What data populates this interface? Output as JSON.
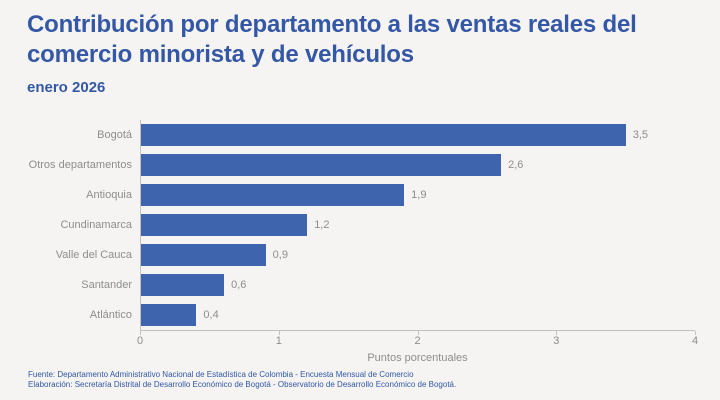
{
  "header": {
    "title": "Contribución por departamento a las ventas reales del comercio minorista y de vehículos",
    "subtitle": "enero 2026"
  },
  "chart_data": {
    "type": "bar",
    "orientation": "horizontal",
    "title": "Contribución por departamento a las ventas reales del comercio minorista y de vehículos",
    "subtitle": "enero 2026",
    "categories": [
      "Bogotá",
      "Otros departamentos",
      "Antioquia",
      "Cundinamarca",
      "Valle del Cauca",
      "Santander",
      "Atlántico"
    ],
    "values": [
      3.5,
      2.6,
      1.9,
      1.2,
      0.9,
      0.6,
      0.4
    ],
    "value_labels": [
      "3,5",
      "2,6",
      "1,9",
      "1,2",
      "0,9",
      "0,6",
      "0,4"
    ],
    "xlabel": "Puntos porcentuales",
    "ylabel": "",
    "xlim": [
      0,
      4
    ],
    "xticks": [
      0,
      1,
      2,
      3,
      4
    ],
    "grid": false,
    "legend": null
  },
  "footer": {
    "source": "Fuente: Departamento Administrativo Nacional de Estadística de Colombia - Encuesta Mensual de Comercio",
    "elaboration": "Elaboración: Secretaría Distrital de Desarrollo Económico de Bogotá - Observatorio de Desarrollo Económico de Bogotá."
  },
  "colors": {
    "background": "#F5F4F2",
    "title": "#3458A5",
    "bar": "#3D64AC",
    "axis_line": "#C2C2C2",
    "muted_text": "#8D8D8D",
    "footer_text": "#3157A5"
  }
}
